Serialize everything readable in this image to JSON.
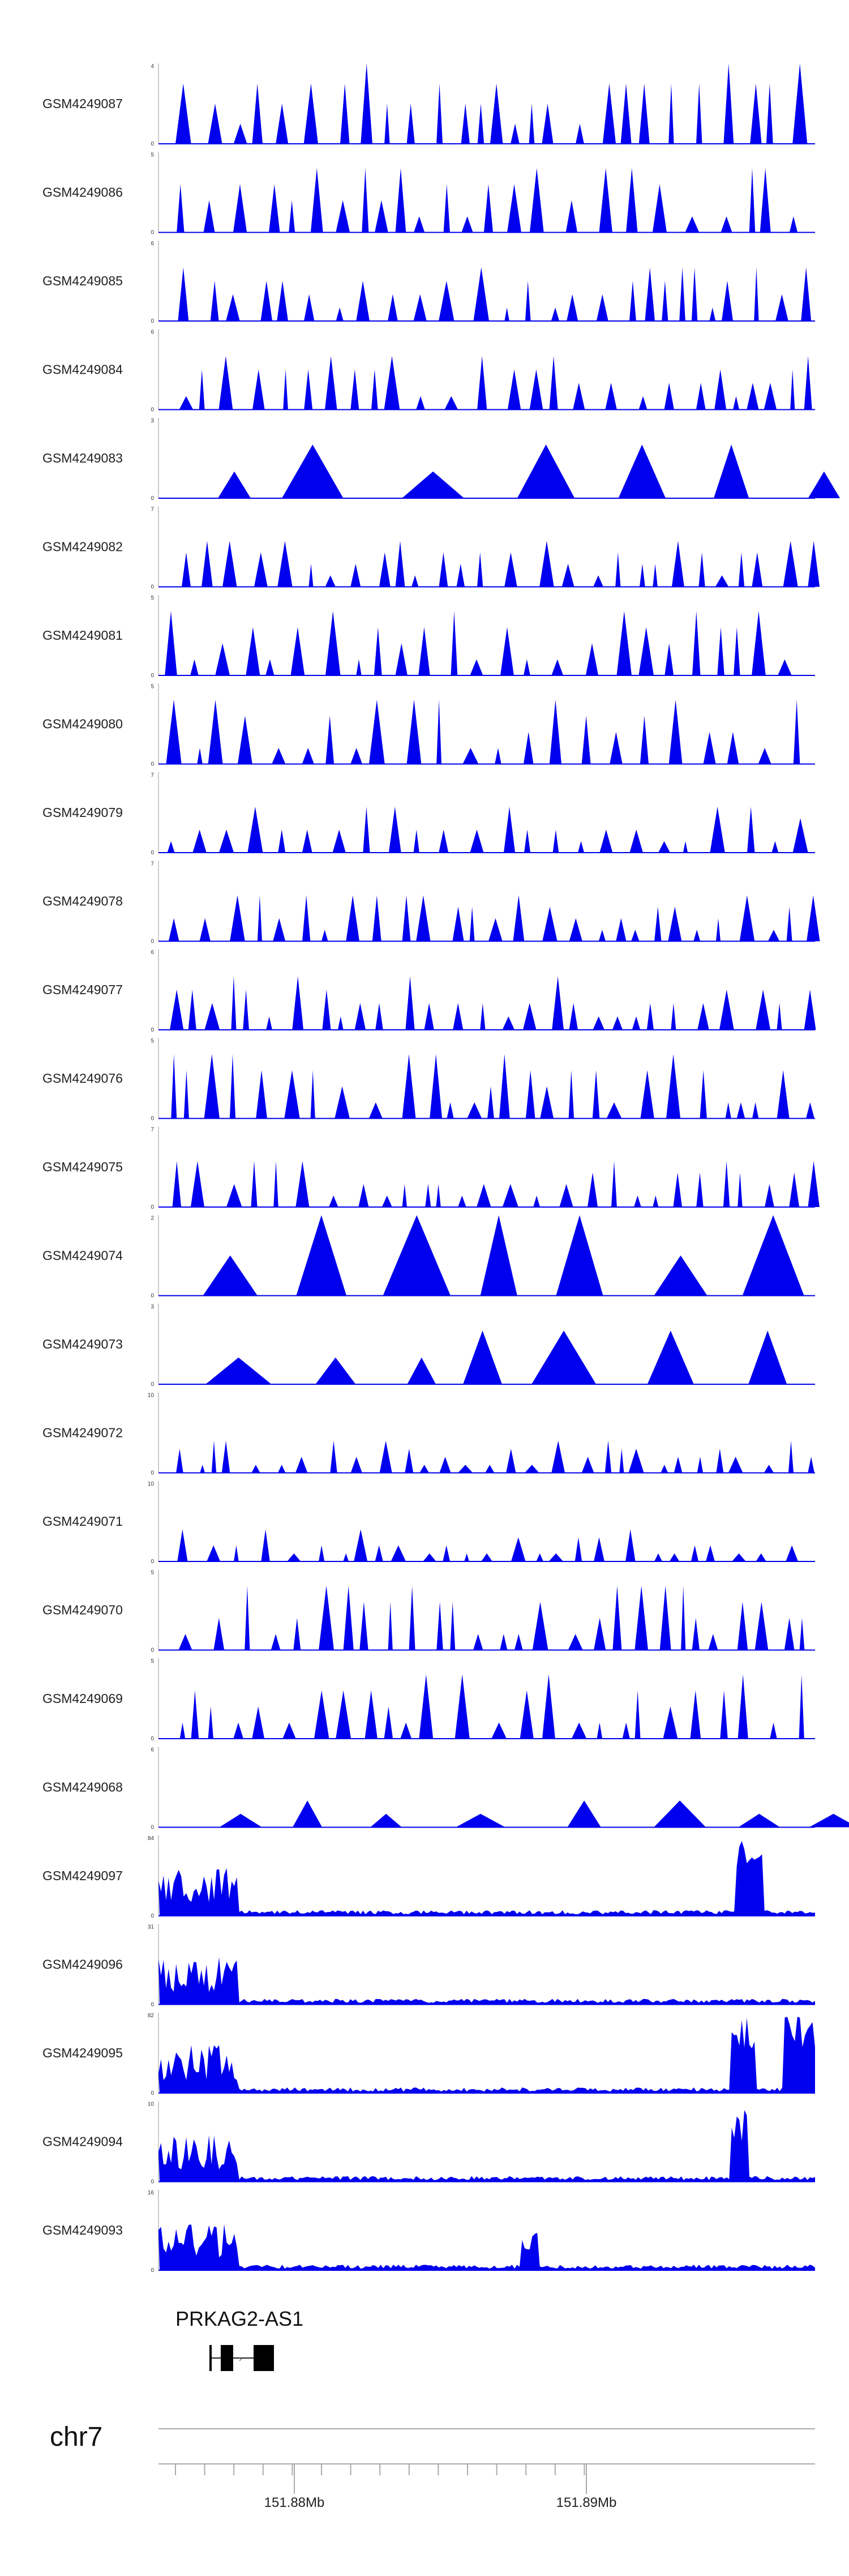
{
  "chart_data": {
    "type": "area",
    "x_range_mb": [
      151.8755,
      151.8978
    ],
    "series_color": "#0000ee",
    "tracks": [
      {
        "name": "GSM4249087",
        "ymax": 4,
        "kind": "sparse"
      },
      {
        "name": "GSM4249086",
        "ymax": 5,
        "kind": "sparse"
      },
      {
        "name": "GSM4249085",
        "ymax": 6,
        "kind": "sparse"
      },
      {
        "name": "GSM4249084",
        "ymax": 6,
        "kind": "sparse"
      },
      {
        "name": "GSM4249083",
        "ymax": 3,
        "kind": "very-sparse"
      },
      {
        "name": "GSM4249082",
        "ymax": 7,
        "kind": "sparse"
      },
      {
        "name": "GSM4249081",
        "ymax": 5,
        "kind": "sparse"
      },
      {
        "name": "GSM4249080",
        "ymax": 5,
        "kind": "sparse"
      },
      {
        "name": "GSM4249079",
        "ymax": 7,
        "kind": "sparse"
      },
      {
        "name": "GSM4249078",
        "ymax": 7,
        "kind": "sparse"
      },
      {
        "name": "GSM4249077",
        "ymax": 6,
        "kind": "sparse"
      },
      {
        "name": "GSM4249076",
        "ymax": 5,
        "kind": "sparse"
      },
      {
        "name": "GSM4249075",
        "ymax": 7,
        "kind": "sparse"
      },
      {
        "name": "GSM4249074",
        "ymax": 2,
        "kind": "very-sparse"
      },
      {
        "name": "GSM4249073",
        "ymax": 3,
        "kind": "very-sparse"
      },
      {
        "name": "GSM4249072",
        "ymax": 10,
        "kind": "sparse"
      },
      {
        "name": "GSM4249071",
        "ymax": 10,
        "kind": "sparse"
      },
      {
        "name": "GSM4249070",
        "ymax": 5,
        "kind": "sparse"
      },
      {
        "name": "GSM4249069",
        "ymax": 5,
        "kind": "sparse"
      },
      {
        "name": "GSM4249068",
        "ymax": 6,
        "kind": "very-sparse"
      },
      {
        "name": "GSM4249097",
        "ymax": 84,
        "kind": "dense"
      },
      {
        "name": "GSM4249096",
        "ymax": 31,
        "kind": "dense"
      },
      {
        "name": "GSM4249095",
        "ymax": 82,
        "kind": "dense"
      },
      {
        "name": "GSM4249094",
        "ymax": 10,
        "kind": "dense"
      },
      {
        "name": "GSM4249093",
        "ymax": 16,
        "kind": "dense"
      }
    ],
    "gene": {
      "name": "PRKAG2-AS1",
      "start_mb": 151.8773,
      "end_mb": 151.8795
    },
    "chromosome": "chr7",
    "axis_ticks_mb": [
      151.88,
      151.89
    ],
    "axis_tick_labels": [
      "151.88Mb",
      "151.89Mb"
    ]
  }
}
